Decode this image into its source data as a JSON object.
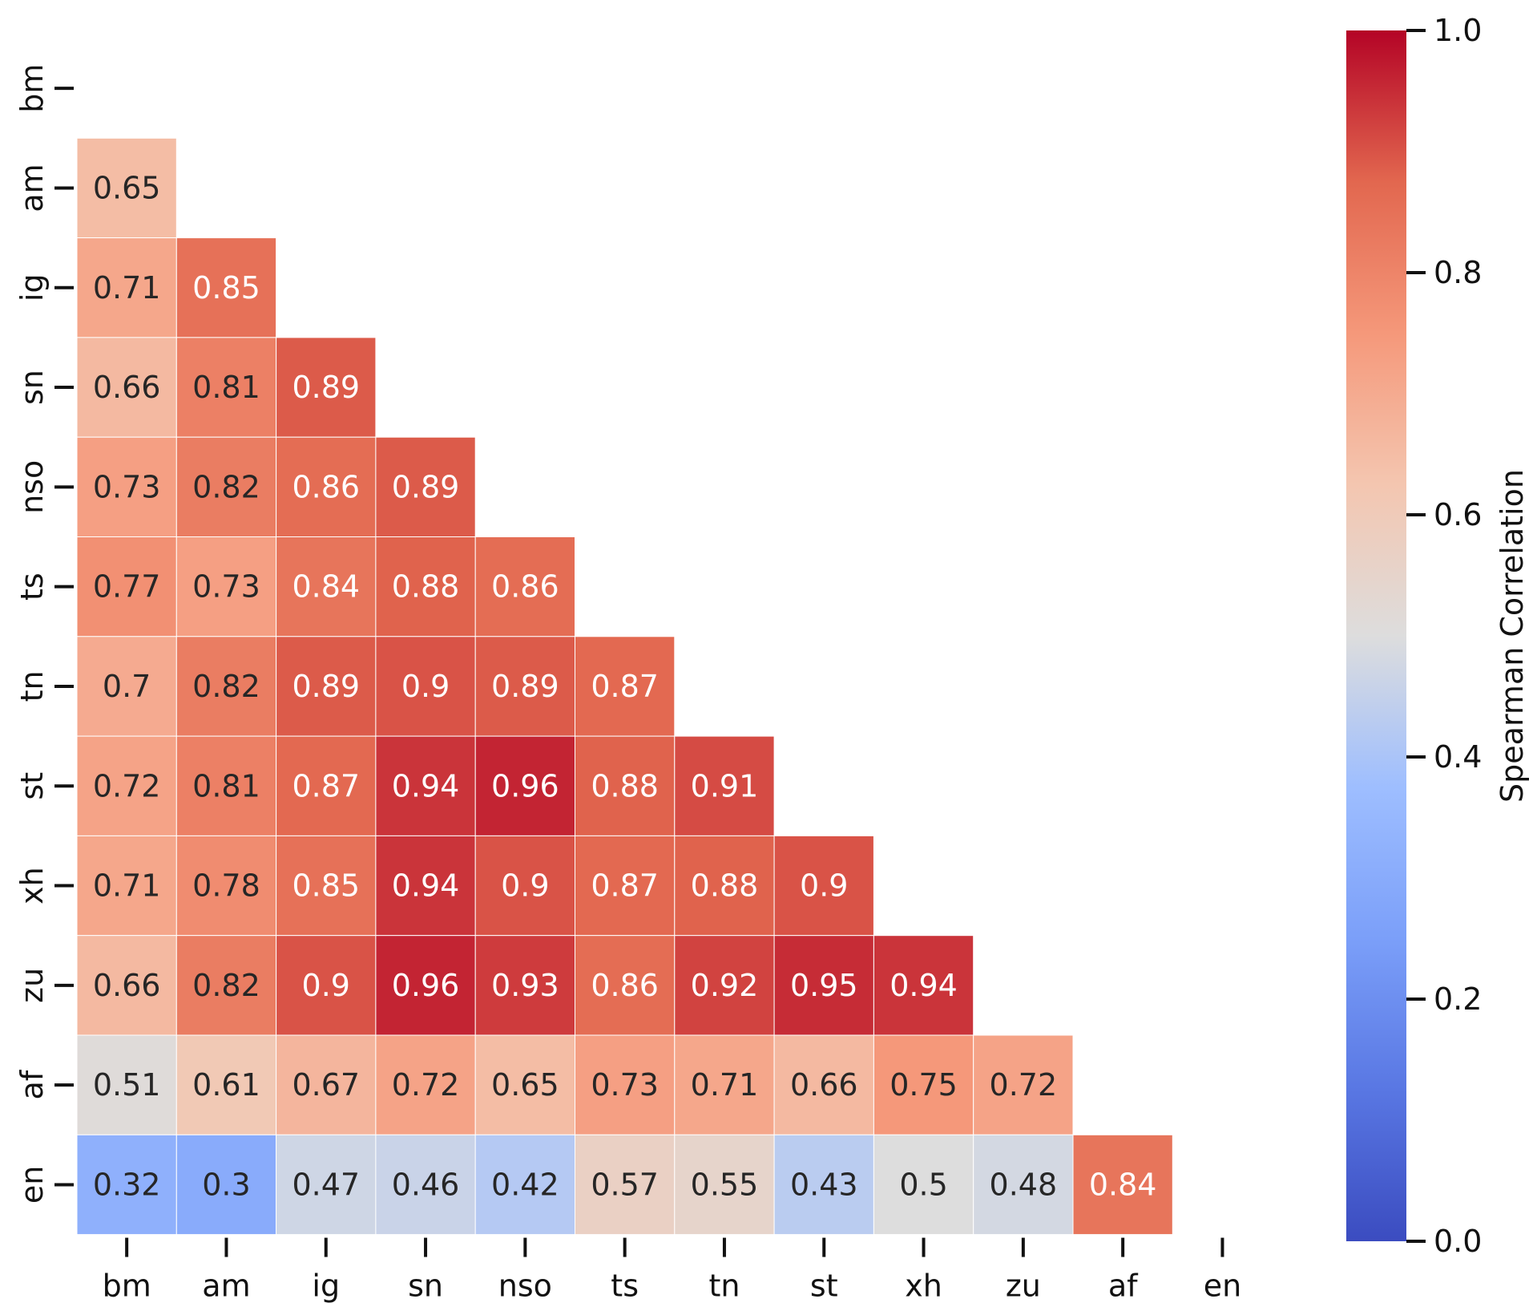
{
  "chart_data": {
    "type": "heatmap",
    "title": "",
    "labels": [
      "bm",
      "am",
      "ig",
      "sn",
      "nso",
      "ts",
      "tn",
      "st",
      "xh",
      "zu",
      "af",
      "en"
    ],
    "matrix": [
      [],
      [
        0.65
      ],
      [
        0.71,
        0.85
      ],
      [
        0.66,
        0.81,
        0.89
      ],
      [
        0.73,
        0.82,
        0.86,
        0.89
      ],
      [
        0.77,
        0.73,
        0.84,
        0.88,
        0.86
      ],
      [
        0.7,
        0.82,
        0.89,
        0.9,
        0.89,
        0.87
      ],
      [
        0.72,
        0.81,
        0.87,
        0.94,
        0.96,
        0.88,
        0.91
      ],
      [
        0.71,
        0.78,
        0.85,
        0.94,
        0.9,
        0.87,
        0.88,
        0.9
      ],
      [
        0.66,
        0.82,
        0.9,
        0.96,
        0.93,
        0.86,
        0.92,
        0.95,
        0.94
      ],
      [
        0.51,
        0.61,
        0.67,
        0.72,
        0.65,
        0.73,
        0.71,
        0.66,
        0.75,
        0.72
      ],
      [
        0.32,
        0.3,
        0.47,
        0.46,
        0.42,
        0.57,
        0.55,
        0.43,
        0.5,
        0.48,
        0.84
      ]
    ],
    "mask": "upper-triangle-including-diagonal",
    "colorbar": {
      "label": "Spearman Correlation",
      "range": [
        0.0,
        1.0
      ],
      "ticks": [
        "0.0",
        "0.2",
        "0.4",
        "0.6",
        "0.8",
        "1.0"
      ],
      "colormap": "coolwarm"
    }
  }
}
